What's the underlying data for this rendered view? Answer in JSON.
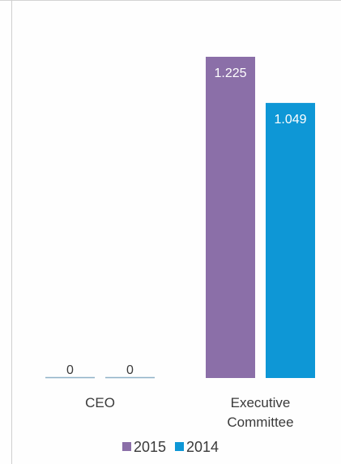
{
  "chart_data": {
    "type": "bar",
    "categories": [
      "CEO",
      "Executive Committee"
    ],
    "category_lines": [
      [
        "CEO"
      ],
      [
        "Executive",
        "Committee"
      ]
    ],
    "series": [
      {
        "name": "2015",
        "values": [
          0,
          1.225
        ],
        "labels": [
          "0",
          "1.225"
        ],
        "color": "#8b6fa8"
      },
      {
        "name": "2014",
        "values": [
          0,
          1.049
        ],
        "labels": [
          "0",
          "1.049"
        ],
        "color": "#0e97d6"
      }
    ],
    "ylim": [
      0,
      1.225
    ],
    "legend_position": "bottom",
    "grid": false
  }
}
